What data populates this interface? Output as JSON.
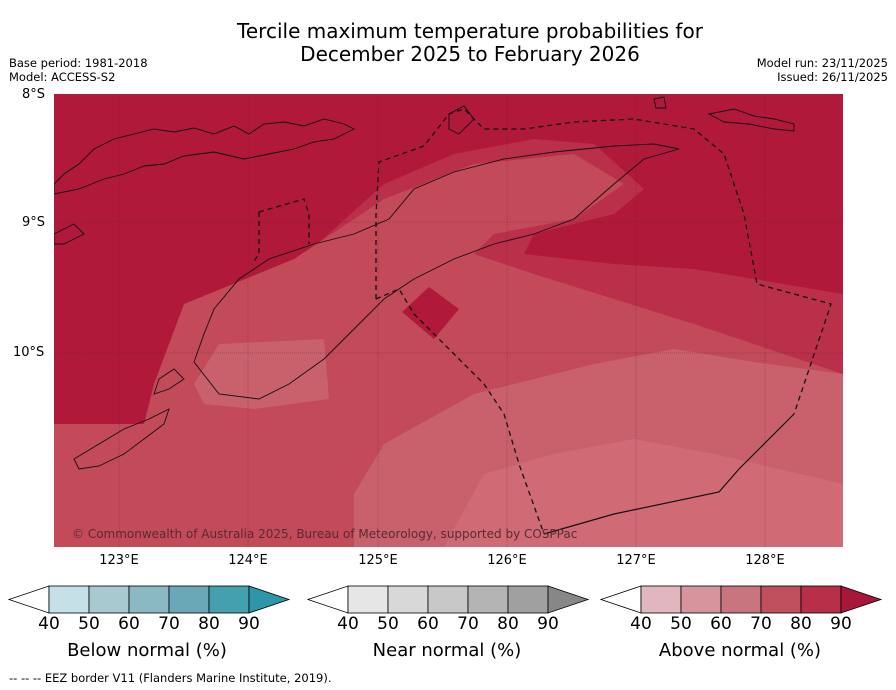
{
  "header": {
    "title_line1": "Tercile maximum temperature probabilities for",
    "title_line2": "December 2025 to February 2026",
    "base_period": "Base period: 1981-2018",
    "model": "Model: ACCESS-S2",
    "model_run": "Model run: 23/11/2025",
    "issued": "Issued: 26/11/2025"
  },
  "map": {
    "lat_labels": [
      "8°S",
      "9°S",
      "10°S"
    ],
    "lon_labels": [
      "123°E",
      "124°E",
      "125°E",
      "126°E",
      "127°E",
      "128°E"
    ],
    "copyright": "© Commonwealth of Australia 2025, Bureau of Meteorology, supported by COSPPac"
  },
  "colorbars": [
    {
      "name": "below",
      "label": "Below normal (%)",
      "ticks": [
        "40",
        "50",
        "60",
        "70",
        "80",
        "90"
      ],
      "colors": [
        "#ffffff",
        "#c5e0e7",
        "#a8c9d0",
        "#8bb9c3",
        "#6aa8b7",
        "#449faf",
        "#2f96aa"
      ]
    },
    {
      "name": "near",
      "label": "Near normal (%)",
      "ticks": [
        "40",
        "50",
        "60",
        "70",
        "80",
        "90"
      ],
      "colors": [
        "#ffffff",
        "#e6e6e6",
        "#d8d8d8",
        "#c8c8c8",
        "#b4b4b4",
        "#a0a0a0",
        "#878787"
      ]
    },
    {
      "name": "above",
      "label": "Above normal (%)",
      "ticks": [
        "40",
        "50",
        "60",
        "70",
        "80",
        "90"
      ],
      "colors": [
        "#ffffff",
        "#e2b6be",
        "#d6949d",
        "#c97580",
        "#bf4f5d",
        "#b72f48",
        "#a8173a"
      ]
    }
  ],
  "footer": "--  --  -- EEZ border V11 (Flanders Marine Institute, 2019)."
}
